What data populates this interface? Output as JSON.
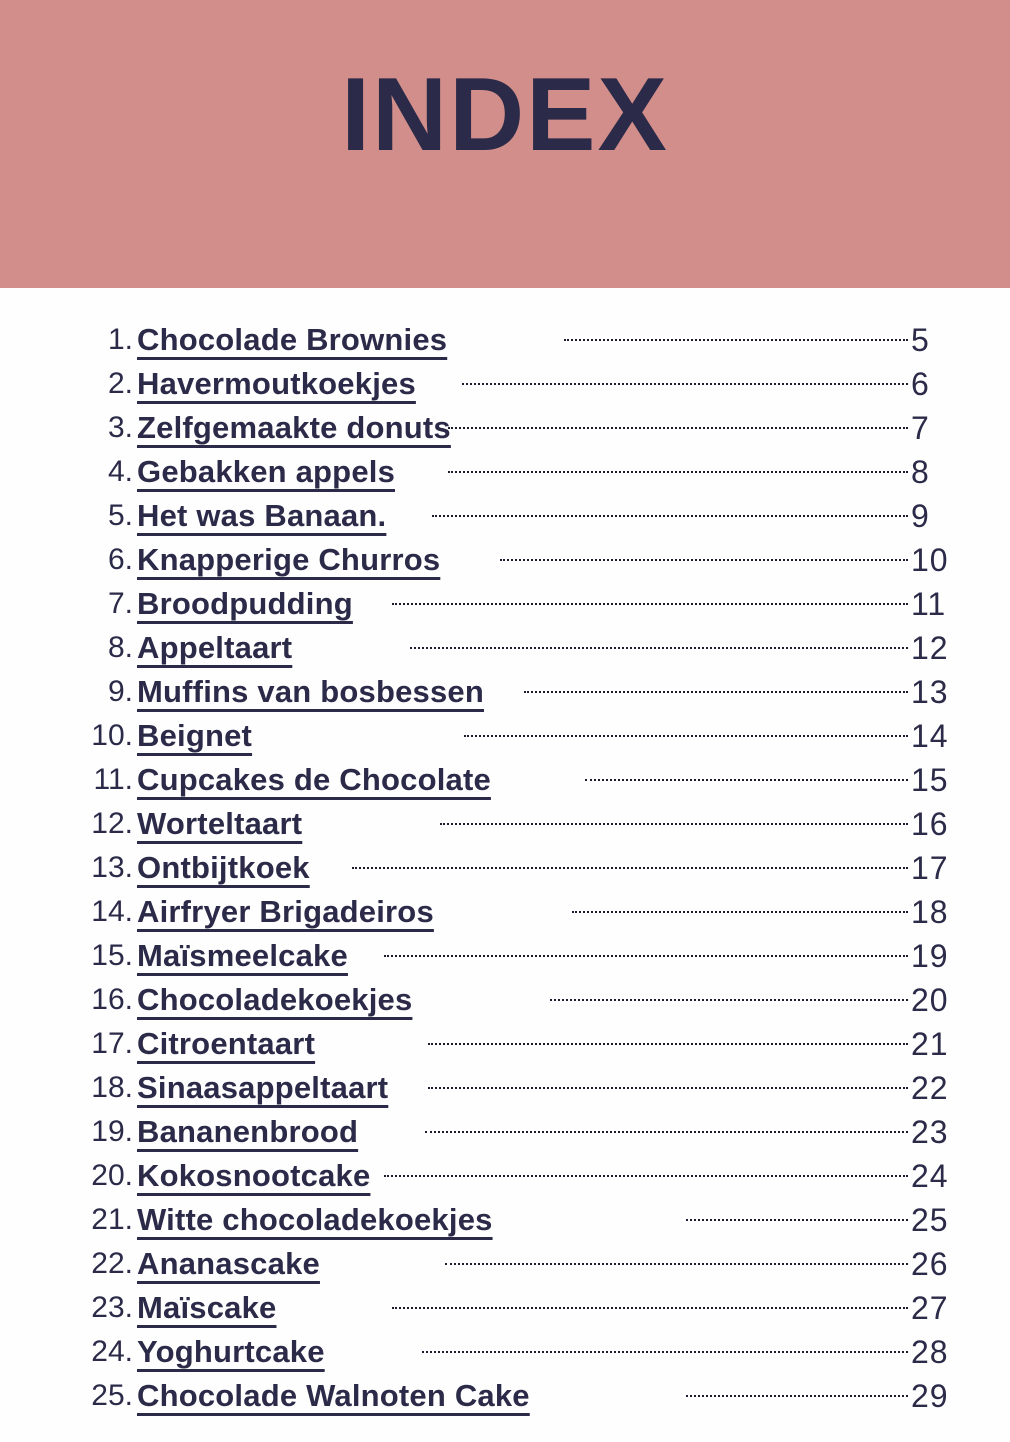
{
  "header": {
    "title": "INDEX"
  },
  "colors": {
    "banner_bg": "#D18E8A",
    "ink": "#2B2A48",
    "leader_dots": "#1C1C30",
    "page_bg": "#FEFEFE"
  },
  "toc": {
    "items": [
      {
        "n": "1.",
        "title": "Chocolade Brownies",
        "page": "5",
        "dots_from": 564
      },
      {
        "n": "2.",
        "title": "Havermoutkoekjes",
        "page": "6",
        "dots_from": 462
      },
      {
        "n": "3.",
        "title": "Zelfgemaakte donuts",
        "page": "7",
        "dots_from": 448
      },
      {
        "n": "4.",
        "title": "Gebakken appels",
        "page": "8",
        "dots_from": 448
      },
      {
        "n": "5.",
        "title": "Het was Banaan.",
        "page": "9",
        "dots_from": 432
      },
      {
        "n": "6.",
        "title": "Knapperige Churros",
        "page": "10",
        "dots_from": 500
      },
      {
        "n": "7.",
        "title": "Broodpudding",
        "page": "11",
        "dots_from": 392
      },
      {
        "n": "8.",
        "title": "Appeltaart",
        "page": "12",
        "dots_from": 410
      },
      {
        "n": "9.",
        "title": "Muffins van bosbessen",
        "page": "13",
        "dots_from": 524
      },
      {
        "n": "10.",
        "title": "Beignet",
        "page": "14",
        "dots_from": 464
      },
      {
        "n": "11.",
        "title": "Cupcakes de Chocolate",
        "page": "15",
        "dots_from": 585
      },
      {
        "n": "12.",
        "title": "Worteltaart",
        "page": "16",
        "dots_from": 440
      },
      {
        "n": "13.",
        "title": "Ontbijtkoek",
        "page": "17",
        "dots_from": 352
      },
      {
        "n": "14.",
        "title": "Airfryer Brigadeiros",
        "page": "18",
        "dots_from": 572
      },
      {
        "n": "15.",
        "title": "Maïsmeelcake",
        "page": "19",
        "dots_from": 384
      },
      {
        "n": "16.",
        "title": "Chocoladekoekjes",
        "page": "20",
        "dots_from": 550
      },
      {
        "n": "17.",
        "title": "Citroentaart",
        "page": "21",
        "dots_from": 428
      },
      {
        "n": "18.",
        "title": "Sinaasappeltaart",
        "page": "22",
        "dots_from": 428
      },
      {
        "n": "19.",
        "title": "Bananenbrood",
        "page": "23",
        "dots_from": 425
      },
      {
        "n": "20.",
        "title": "Kokosnootcake",
        "page": "24",
        "dots_from": 384
      },
      {
        "n": "21.",
        "title": "Witte chocoladekoekjes",
        "page": "25",
        "dots_from": 686
      },
      {
        "n": "22.",
        "title": "Ananascake",
        "page": "26",
        "dots_from": 445
      },
      {
        "n": "23.",
        "title": "Maïscake",
        "page": "27",
        "dots_from": 392
      },
      {
        "n": "24.",
        "title": "Yoghurtcake",
        "page": "28",
        "dots_from": 422
      },
      {
        "n": "25.",
        "title": "Chocolade Walnoten Cake",
        "page": "29",
        "dots_from": 686
      }
    ]
  }
}
